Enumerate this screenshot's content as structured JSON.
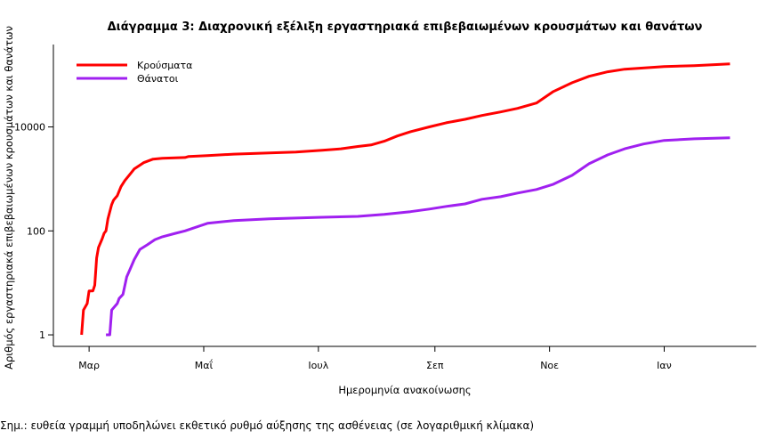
{
  "chart_data": {
    "type": "line",
    "title": "Διάγραμμα 3: Διαχρονική εξέλιξη εργαστηριακά επιβεβαιωμένων κρουσμάτων και θανάτων",
    "xlabel": "Ημερομηνία ανακοίνωσης",
    "ylabel": "Αριθμός εργαστηριακά επιβεβαιωμένων κρουσμάτων και θανάτων",
    "y_scale": "log",
    "ylim": [
      0.6,
      316000
    ],
    "xlim": [
      "2020-02-11",
      "2021-02-19"
    ],
    "y_ticks": [
      {
        "value": 1,
        "label": "1"
      },
      {
        "value": 100,
        "label": "100"
      },
      {
        "value": 10000,
        "label": "10000"
      }
    ],
    "x_ticks": [
      {
        "date": "2020-03-01",
        "label": "Μαρ"
      },
      {
        "date": "2020-05-01",
        "label": "Μαΐ"
      },
      {
        "date": "2020-07-01",
        "label": "Ιουλ"
      },
      {
        "date": "2020-09-01",
        "label": "Σεπ"
      },
      {
        "date": "2020-11-01",
        "label": "Νοε"
      },
      {
        "date": "2021-01-01",
        "label": "Ιαν"
      }
    ],
    "grid": false,
    "legend_position": "top-left",
    "series": [
      {
        "name": "Κρούσματα",
        "color": "#ff0000",
        "points": [
          [
            "2020-02-26",
            1
          ],
          [
            "2020-02-27",
            3
          ],
          [
            "2020-02-29",
            4
          ],
          [
            "2020-03-01",
            7
          ],
          [
            "2020-03-03",
            7
          ],
          [
            "2020-03-04",
            9
          ],
          [
            "2020-03-05",
            30
          ],
          [
            "2020-03-06",
            48
          ],
          [
            "2020-03-08",
            71
          ],
          [
            "2020-03-09",
            90
          ],
          [
            "2020-03-10",
            100
          ],
          [
            "2020-03-11",
            170
          ],
          [
            "2020-03-13",
            320
          ],
          [
            "2020-03-14",
            390
          ],
          [
            "2020-03-16",
            475
          ],
          [
            "2020-03-18",
            710
          ],
          [
            "2020-03-20",
            930
          ],
          [
            "2020-03-23",
            1260
          ],
          [
            "2020-03-25",
            1550
          ],
          [
            "2020-03-30",
            2050
          ],
          [
            "2020-04-04",
            2400
          ],
          [
            "2020-04-09",
            2500
          ],
          [
            "2020-04-21",
            2580
          ],
          [
            "2020-04-23",
            2700
          ],
          [
            "2020-05-03",
            2800
          ],
          [
            "2020-05-17",
            3000
          ],
          [
            "2020-06-05",
            3150
          ],
          [
            "2020-06-19",
            3300
          ],
          [
            "2020-07-03",
            3550
          ],
          [
            "2020-07-13",
            3800
          ],
          [
            "2020-07-22",
            4200
          ],
          [
            "2020-07-29",
            4500
          ],
          [
            "2020-08-05",
            5300
          ],
          [
            "2020-08-12",
            6700
          ],
          [
            "2020-08-19",
            8100
          ],
          [
            "2020-08-29",
            10000
          ],
          [
            "2020-09-07",
            12000
          ],
          [
            "2020-09-17",
            14000
          ],
          [
            "2020-09-26",
            16600
          ],
          [
            "2020-10-06",
            19400
          ],
          [
            "2020-10-15",
            22800
          ],
          [
            "2020-10-25",
            28800
          ],
          [
            "2020-11-03",
            48000
          ],
          [
            "2020-11-13",
            71000
          ],
          [
            "2020-11-22",
            94000
          ],
          [
            "2020-12-02",
            115000
          ],
          [
            "2020-12-11",
            129000
          ],
          [
            "2021-01-01",
            145000
          ],
          [
            "2021-01-17",
            151000
          ],
          [
            "2021-02-05",
            163000
          ]
        ]
      },
      {
        "name": "Θάνατοι",
        "color": "#a020f0",
        "points": [
          [
            "2020-03-10",
            1
          ],
          [
            "2020-03-12",
            1
          ],
          [
            "2020-03-13",
            3
          ],
          [
            "2020-03-16",
            4
          ],
          [
            "2020-03-17",
            5
          ],
          [
            "2020-03-19",
            6
          ],
          [
            "2020-03-21",
            13
          ],
          [
            "2020-03-23",
            19
          ],
          [
            "2020-03-25",
            28
          ],
          [
            "2020-03-28",
            44
          ],
          [
            "2020-04-01",
            54
          ],
          [
            "2020-04-05",
            68
          ],
          [
            "2020-04-09",
            77
          ],
          [
            "2020-04-16",
            90
          ],
          [
            "2020-04-21",
            100
          ],
          [
            "2020-05-03",
            140
          ],
          [
            "2020-05-17",
            158
          ],
          [
            "2020-06-05",
            170
          ],
          [
            "2020-07-03",
            183
          ],
          [
            "2020-07-22",
            190
          ],
          [
            "2020-08-05",
            208
          ],
          [
            "2020-08-19",
            234
          ],
          [
            "2020-08-29",
            263
          ],
          [
            "2020-09-07",
            296
          ],
          [
            "2020-09-17",
            330
          ],
          [
            "2020-09-26",
            406
          ],
          [
            "2020-10-06",
            455
          ],
          [
            "2020-10-15",
            535
          ],
          [
            "2020-10-25",
            626
          ],
          [
            "2020-11-03",
            790
          ],
          [
            "2020-11-13",
            1170
          ],
          [
            "2020-11-22",
            1960
          ],
          [
            "2020-12-02",
            2900
          ],
          [
            "2020-12-11",
            3800
          ],
          [
            "2020-12-21",
            4700
          ],
          [
            "2021-01-01",
            5500
          ],
          [
            "2021-01-17",
            5900
          ],
          [
            "2021-02-05",
            6200
          ]
        ]
      }
    ]
  },
  "note": "Σημ.: ευθεία γραμμή υποδηλώνει εκθετικό ρυθμό αύξησης της ασθένειας (σε λογαριθμική κλίμακα)"
}
